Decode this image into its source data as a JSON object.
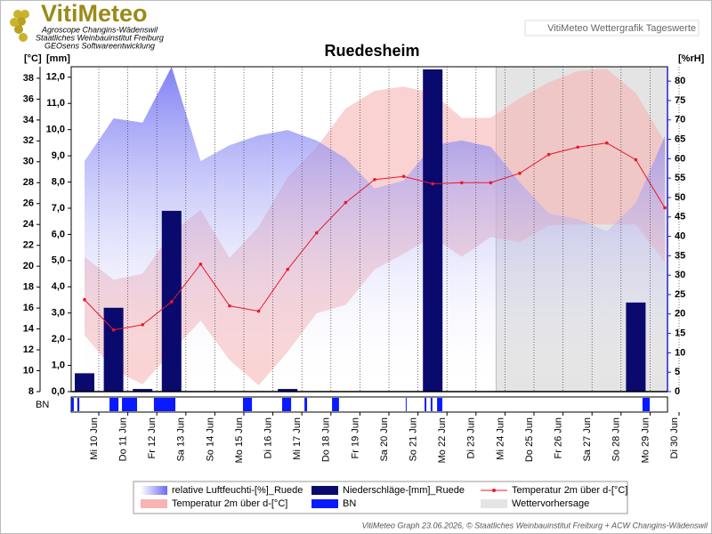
{
  "header": {
    "logo": "VitiMeteo",
    "lines": [
      "Agroscope Changins-Wädenswil",
      "Staatliches Weinbauinstitut Freiburg",
      "GEOsens Softwareentwicklung"
    ],
    "caption": "VitiMeteo Wettergrafik Tageswerte"
  },
  "chart_data": {
    "type": "combo",
    "title": "Ruedesheim",
    "y_label": "[°C]",
    "y2_label": "[mm]",
    "y3_label": "[%rH]",
    "strip_label": "BN",
    "categories": [
      "Mi 10 Jun",
      "Do 11 Jun",
      "Fr 12 Jun",
      "Sa 13 Jun",
      "So 14 Jun",
      "Mo 15 Jun",
      "Di 16 Jun",
      "Mi 17 Jun",
      "Do 18 Jun",
      "Fr 19 Jun",
      "Sa 20 Jun",
      "So 21 Jun",
      "Mo 22 Jun",
      "Di 23 Jun",
      "Mi 24 Jun",
      "Do 25 Jun",
      "Fr 26 Jun",
      "Sa 27 Jun",
      "So 28 Jun",
      "Mo 29 Jun",
      "Di 30 Jun"
    ],
    "ylim": [
      8,
      39.1
    ],
    "yticks": [
      8,
      10,
      12,
      14,
      16,
      18,
      20,
      22,
      24,
      26,
      28,
      30,
      32,
      34,
      36,
      38
    ],
    "y2lim": [
      0,
      12.4
    ],
    "y2ticks": [
      {
        "value": 0,
        "label": "0,0"
      },
      {
        "value": 1,
        "label": "1,0"
      },
      {
        "value": 2,
        "label": "2,0"
      },
      {
        "value": 3,
        "label": "3,0"
      },
      {
        "value": 4,
        "label": "4,0"
      },
      {
        "value": 5,
        "label": "5,0"
      },
      {
        "value": 6,
        "label": "6,0"
      },
      {
        "value": 7,
        "label": "7,0"
      },
      {
        "value": 8,
        "label": "8,0"
      },
      {
        "value": 9,
        "label": "9,0"
      },
      {
        "value": 10,
        "label": "10,0"
      },
      {
        "value": 11,
        "label": "11,0"
      },
      {
        "value": 12,
        "label": "12,0"
      }
    ],
    "y3lim": [
      0,
      83.7
    ],
    "y3ticks": [
      0,
      5,
      10,
      15,
      20,
      25,
      30,
      35,
      40,
      45,
      50,
      55,
      60,
      65,
      70,
      75,
      80
    ],
    "series": [
      {
        "name": "relative Luftfeuchti-[%]_Ruede",
        "type": "area",
        "axis": "y3",
        "color": "#6b6bf2",
        "values": [
          59.4,
          70.4,
          69.3,
          83.7,
          59.4,
          63.5,
          66,
          67.4,
          64.7,
          60.1,
          52.3,
          54.4,
          63.5,
          64.7,
          63.1,
          53.9,
          45.9,
          44.5,
          41.3,
          48.6,
          65.8
        ]
      },
      {
        "name": "Temperatur 2m über d-[°C]",
        "type": "band",
        "color": "#f7b4b4",
        "low": [
          13.4,
          10.1,
          8.7,
          11.8,
          14.8,
          11,
          8.6,
          11.8,
          15.5,
          16.3,
          19.7,
          21.2,
          22.8,
          20.9,
          22.8,
          22.3,
          23.9,
          24,
          24,
          24,
          20.4
        ],
        "high": [
          20.9,
          18.7,
          19.3,
          23.2,
          25.4,
          20.8,
          23.8,
          28.5,
          31.4,
          35.1,
          36.8,
          37.2,
          36.6,
          34.2,
          34.2,
          36.1,
          37.6,
          38.7,
          38.9,
          36.6,
          31.9
        ]
      },
      {
        "name": "Niederschläge-[mm]_Ruede",
        "type": "bar",
        "axis": "y2",
        "color": "#0a0a6e",
        "values": [
          0.7,
          3.2,
          0.1,
          6.9,
          0,
          0,
          0,
          0.1,
          0,
          0,
          0,
          0,
          12.3,
          0,
          0,
          0,
          0,
          0,
          0,
          3.4,
          0
        ]
      },
      {
        "name": "Temperatur 2m über d-[°C]",
        "type": "line",
        "color": "#e8192c",
        "values": [
          16.8,
          13.9,
          14.4,
          16.6,
          20.2,
          16.2,
          15.7,
          19.7,
          23.2,
          26.1,
          28.3,
          28.6,
          27.9,
          28,
          28,
          28.9,
          30.7,
          31.4,
          31.8,
          30.2,
          25.6
        ]
      },
      {
        "name": "BN",
        "type": "strip",
        "color": "#0a1aff",
        "intervals": [
          [
            -0.46,
            -0.37
          ],
          [
            -0.25,
            -0.18
          ],
          [
            0.86,
            1.17
          ],
          [
            1.29,
            1.81
          ],
          [
            2.39,
            3.13
          ],
          [
            5.46,
            5.77
          ],
          [
            6.81,
            7.12
          ],
          [
            7.58,
            7.67
          ],
          [
            8.53,
            8.77
          ],
          [
            11.07,
            11.1
          ],
          [
            11.72,
            11.78
          ],
          [
            11.93,
            11.99
          ],
          [
            12.15,
            12.33
          ],
          [
            19.23,
            19.48
          ]
        ]
      },
      {
        "name": "Wettervorhersage",
        "type": "region",
        "color": "#e4e4e4",
        "from": "Mi 24 Jun"
      }
    ],
    "grid": "x"
  },
  "footer": "VitiMeteo Graph 23.06.2026, © Staatliches Weinbauinstitut Freiburg + ACW Changins-Wädenswil"
}
